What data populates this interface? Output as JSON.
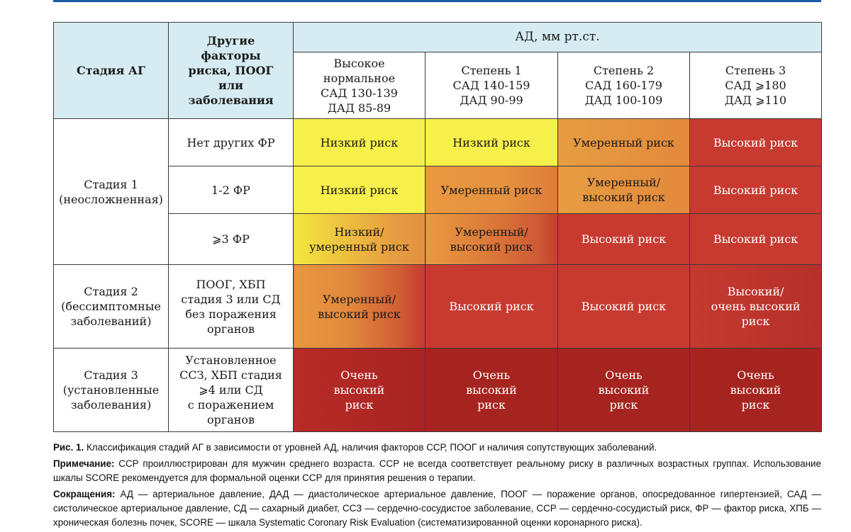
{
  "header": {
    "stage_col": "Стадия АГ",
    "factors_col": "Другие факторы риска, ПООГ или заболевания",
    "bp_group": "АД, мм рт.ст.",
    "bp_cols": [
      [
        "Высокое",
        "нормальное",
        "САД 130-139",
        "ДАД 85-89"
      ],
      [
        "Степень 1",
        "САД 140-159",
        "ДАД 90-99"
      ],
      [
        "Степень 2",
        "САД 160-179",
        "ДАД 100-109"
      ],
      [
        "Степень 3",
        "САД ⩾180",
        "ДАД ⩾110"
      ]
    ]
  },
  "stages": [
    [
      "Стадия 1",
      "(неосложненная)"
    ],
    [
      "Стадия 2",
      "(бессимптомные",
      "заболеваний)"
    ],
    [
      "Стадия 3",
      "(установленные",
      "заболевания)"
    ]
  ],
  "factors": [
    [
      "Нет других ФР"
    ],
    [
      "1-2 ФР"
    ],
    [
      "⩾3 ФР"
    ],
    [
      "ПООГ, ХБП",
      "стадия 3 или СД",
      "без поражения",
      "органов"
    ],
    [
      "Установленное",
      "ССЗ, ХБП стадия",
      "⩾4 или СД",
      "с поражением",
      "органов"
    ]
  ],
  "cells": [
    [
      [
        "Низкий риск"
      ],
      [
        "Низкий риск"
      ],
      [
        "Умеренный риск"
      ],
      [
        "Высокий риск"
      ]
    ],
    [
      [
        "Низкий риск"
      ],
      [
        "Умеренный риск"
      ],
      [
        "Умеренный/",
        "высокий риск"
      ],
      [
        "Высокий риск"
      ]
    ],
    [
      [
        "Низкий/",
        "умеренный риск"
      ],
      [
        "Умеренный/",
        "высокий риск"
      ],
      [
        "Высокий риск"
      ],
      [
        "Высокий риск"
      ]
    ],
    [
      [
        "Умеренный/",
        "высокий риск"
      ],
      [
        "Высокий риск"
      ],
      [
        "Высокий риск"
      ],
      [
        "Высокий/",
        "очень высокий",
        "риск"
      ]
    ],
    [
      [
        "Очень",
        "высокий",
        "риск"
      ],
      [
        "Очень",
        "высокий",
        "риск"
      ],
      [
        "Очень",
        "высокий",
        "риск"
      ],
      [
        "Очень",
        "высокий",
        "риск"
      ]
    ]
  ],
  "colors": {
    "header_bg": "#d6ecf2",
    "low": "#f8f04a",
    "moderate": "#e5913f",
    "high": "#c63a30",
    "very_high": "#a6241f",
    "top_rule": "#1f5aa6"
  },
  "caption": {
    "fig_label": "Рис. 1.",
    "fig_text": "Классификация стадий АГ в зависимости от уровней АД, наличия факторов ССР, ПООГ и наличия сопутствующих заболеваний.",
    "note_label": "Примечание:",
    "note_text": "ССР проиллюстрирован для мужчин среднего возраста. ССР не всегда соответствует реальному риску в различных возрастных группах. Использование шкалы SCORE рекомендуется для формальной оценки ССР для принятия решения о терапии.",
    "abbr_label": "Сокращения:",
    "abbr_text": "АД — артериальное давление, ДАД — диастолическое артериальное давление, ПООГ — поражение органов, опосредованное гипертензией, САД — систолическое артериальное давление, СД — сахарный диабет, ССЗ — сердечно-сосудистое заболевание, ССР — сердечно-сосудистый риск, ФР — фактор риска, ХПБ — хроническая болезнь почек, SCORE — шкала Systematic Coronary Risk Evaluation (систематизированной оценки коронарного риска)."
  }
}
